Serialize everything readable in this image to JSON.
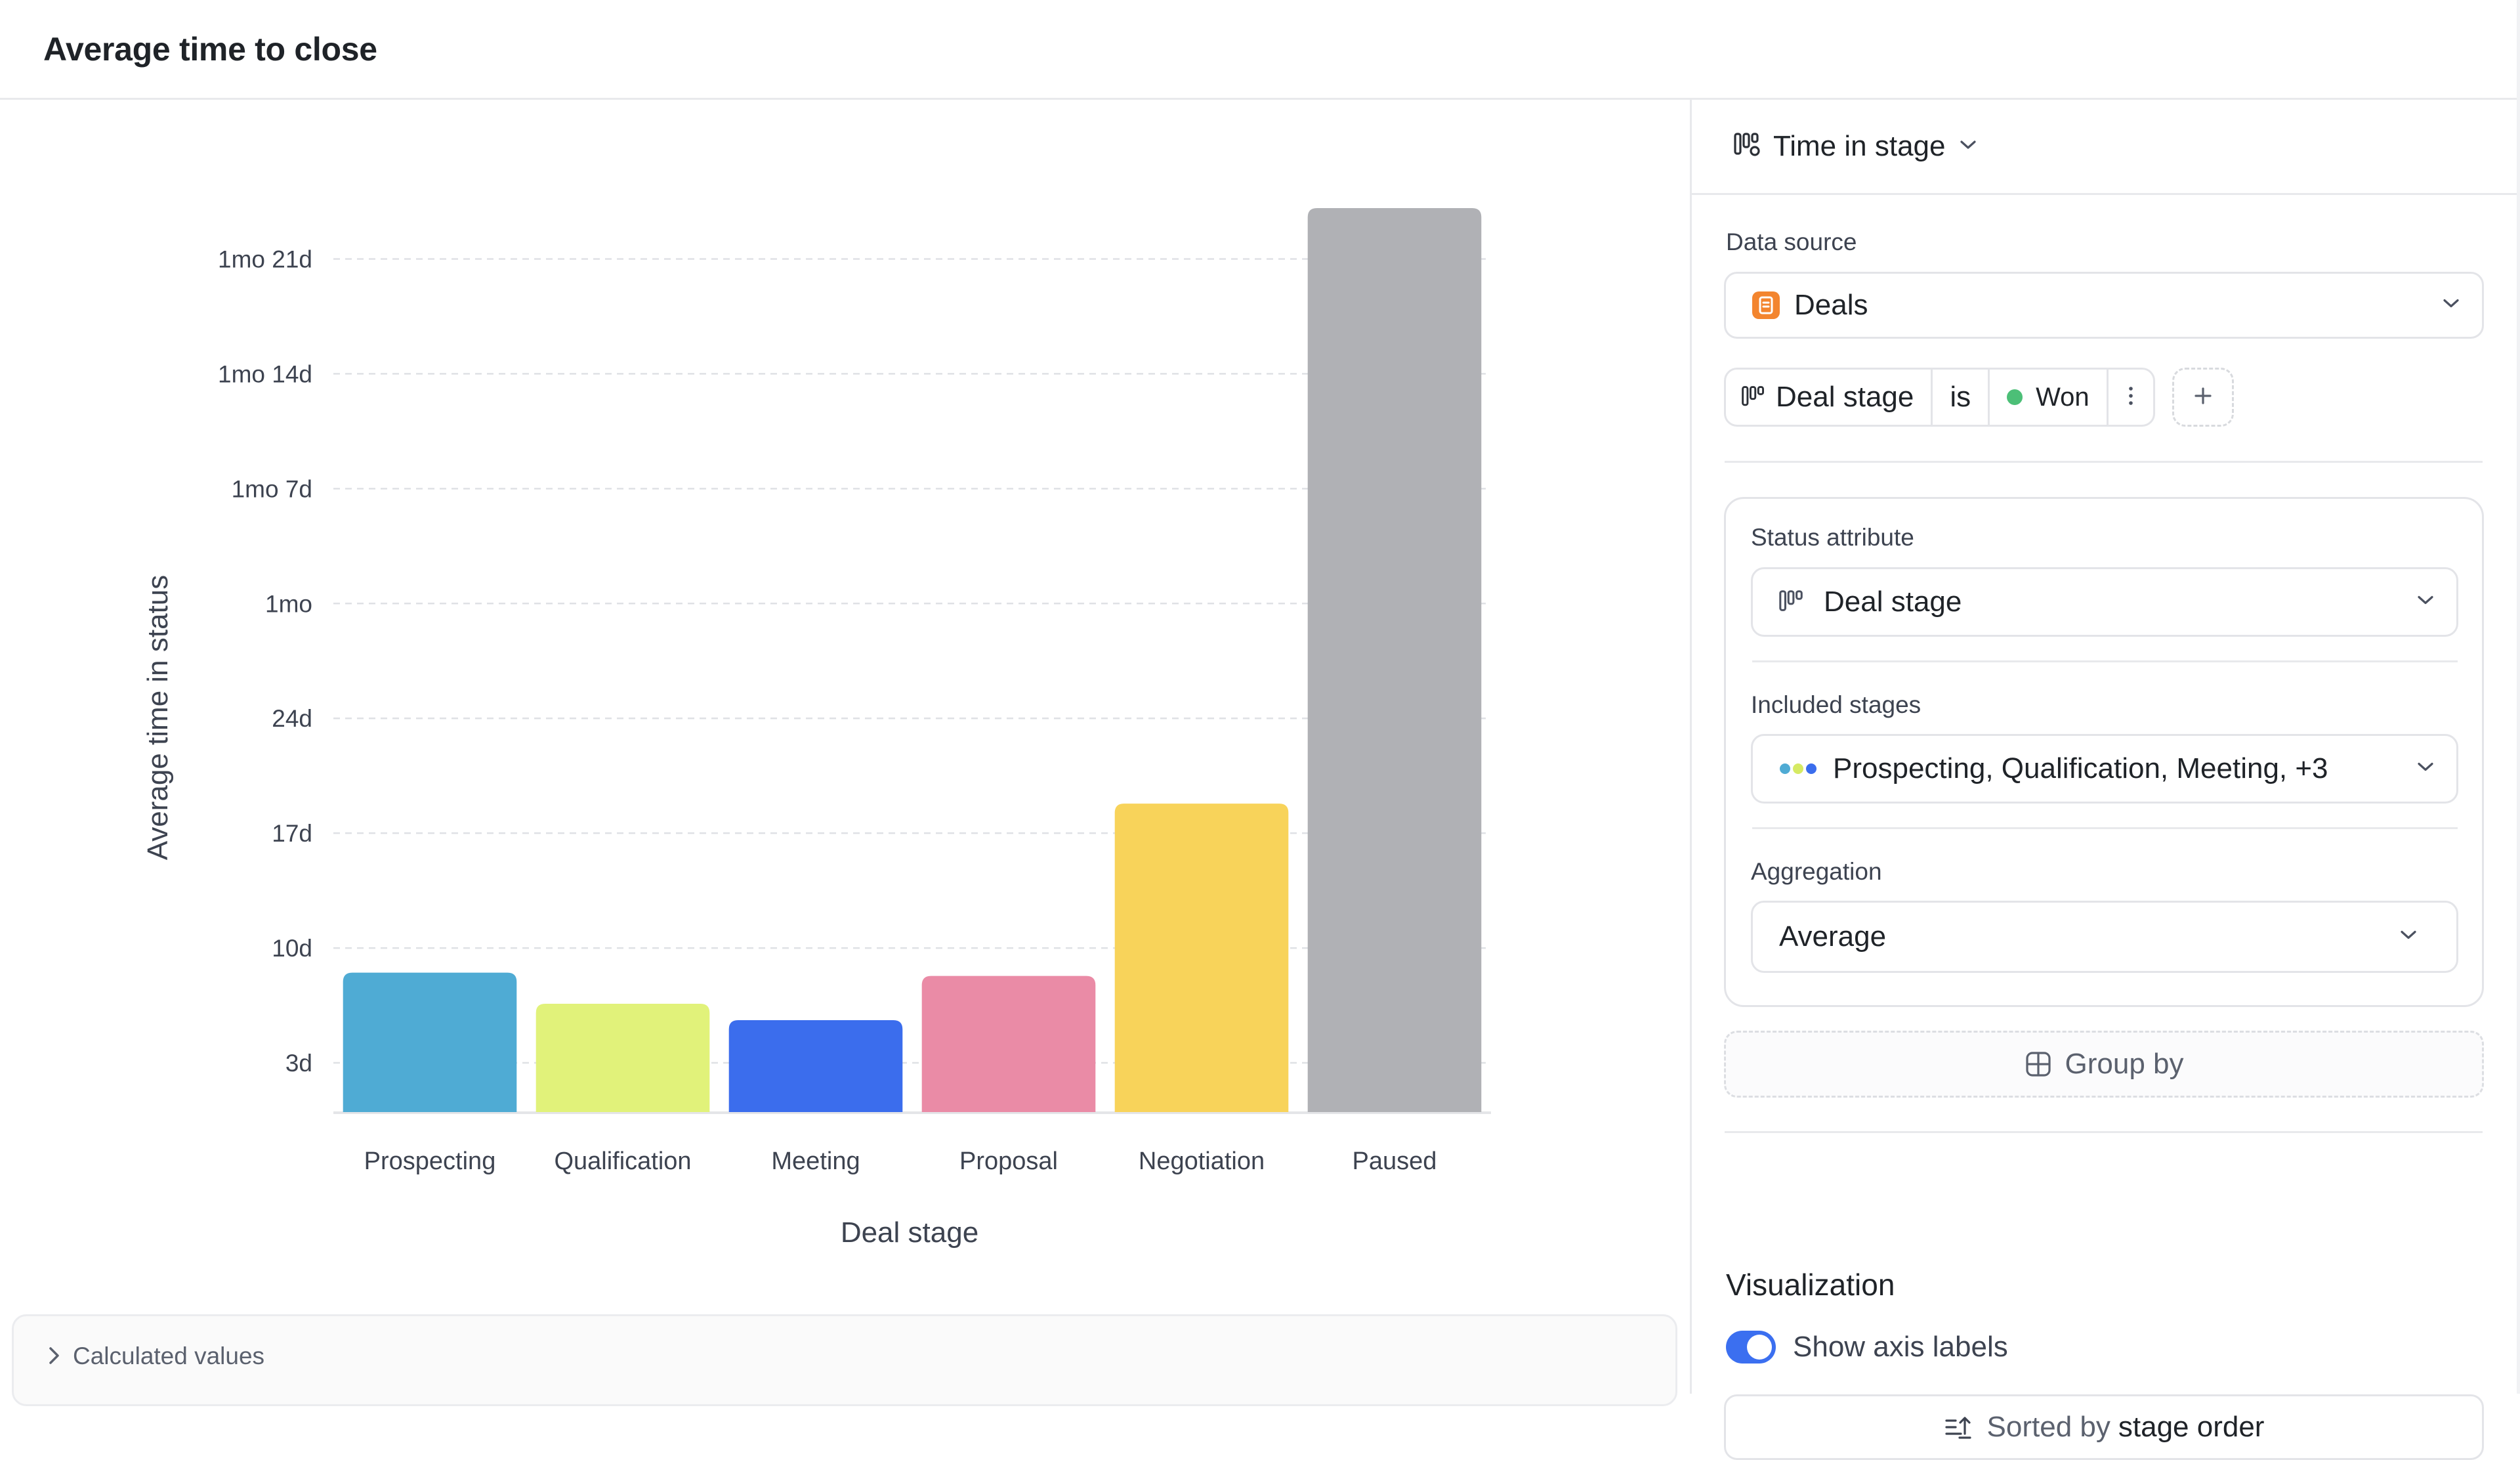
{
  "header": {
    "title": "Average time to close"
  },
  "calculated_values": {
    "label": "Calculated values"
  },
  "settings": {
    "metric": {
      "label": "Time in stage"
    },
    "data_source": {
      "label": "Data source",
      "value": "Deals"
    },
    "filter": {
      "attribute": "Deal stage",
      "operator": "is",
      "value": "Won",
      "value_color": "#4cbf77"
    },
    "status_attribute": {
      "label": "Status attribute",
      "value": "Deal stage"
    },
    "included_stages": {
      "label": "Included stages",
      "value": "Prospecting, Qualification, Meeting, +3"
    },
    "aggregation": {
      "label": "Aggregation",
      "value": "Average"
    },
    "group_by": {
      "label": "Group by"
    },
    "visualization": {
      "title": "Visualization",
      "show_axis_labels": {
        "label": "Show axis labels",
        "enabled": true
      },
      "sort": {
        "prefix": "Sorted by",
        "value": "stage order"
      }
    }
  },
  "chart_data": {
    "type": "bar",
    "xlabel": "Deal stage",
    "ylabel": "Average time in status",
    "categories": [
      "Prospecting",
      "Qualification",
      "Meeting",
      "Proposal",
      "Negotiation",
      "Paused"
    ],
    "values": [
      8.5,
      6.6,
      5.6,
      8.3,
      18.8,
      55.1
    ],
    "value_unit": "days",
    "colors": [
      "#4fabd4",
      "#e1f27a",
      "#3b6ded",
      "#ea8ba6",
      "#f8d35a",
      "#b0b1b5"
    ],
    "ylim": [
      0,
      56.9
    ],
    "yticks": [
      {
        "value": 3,
        "label": "3d"
      },
      {
        "value": 10,
        "label": "10d"
      },
      {
        "value": 17,
        "label": "17d"
      },
      {
        "value": 24,
        "label": "24d"
      },
      {
        "value": 31,
        "label": "1mo"
      },
      {
        "value": 38,
        "label": "1mo 7d"
      },
      {
        "value": 45,
        "label": "1mo 14d"
      },
      {
        "value": 52,
        "label": "1mo 21d"
      }
    ],
    "grid": true
  }
}
